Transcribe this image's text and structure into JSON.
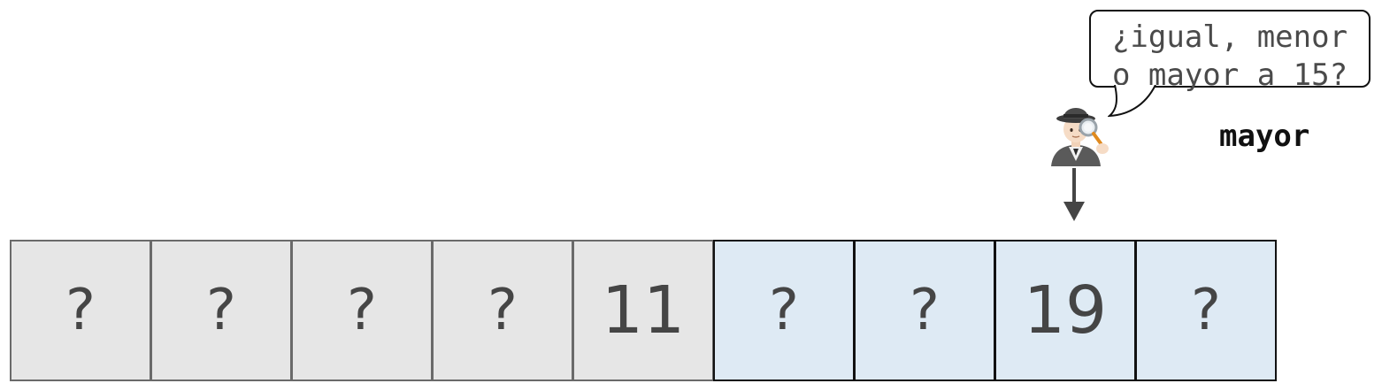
{
  "bubble": {
    "lines": "¿igual, menor\no mayor a 15?"
  },
  "answer": "mayor",
  "array": {
    "cells": [
      {
        "label": "?",
        "state": "eliminated"
      },
      {
        "label": "?",
        "state": "eliminated"
      },
      {
        "label": "?",
        "state": "eliminated"
      },
      {
        "label": "?",
        "state": "eliminated"
      },
      {
        "label": "11",
        "state": "eliminated"
      },
      {
        "label": "?",
        "state": "remaining"
      },
      {
        "label": "?",
        "state": "remaining"
      },
      {
        "label": "19",
        "state": "remaining"
      },
      {
        "label": "?",
        "state": "remaining"
      }
    ],
    "pointer_index": 7
  },
  "icons": {
    "detective": "detective-icon",
    "arrow": "down-arrow-icon"
  },
  "colors": {
    "eliminated_fill": "#e6e6e6",
    "remaining_fill": "#deeaf4",
    "text": "#454545"
  }
}
